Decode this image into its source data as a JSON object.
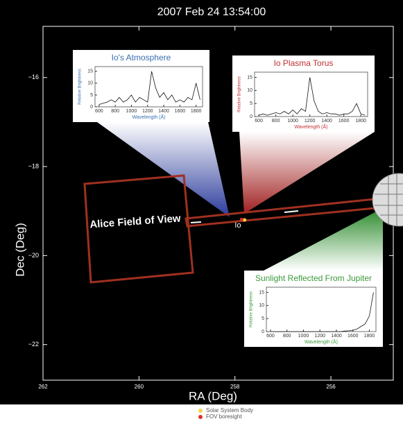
{
  "chart_data": [
    {
      "type": "scatter",
      "title": "2007 Feb 24 13:54:00",
      "x_label": "RA (Deg)",
      "y_label": "Dec (Deg)",
      "xlim": [
        262,
        254.7
      ],
      "ylim": [
        -22.8,
        -14.85
      ],
      "xticks": [
        262,
        260,
        258,
        256
      ],
      "yticks": [
        {
          "value": -16,
          "label": "−16"
        },
        {
          "value": -18,
          "label": "−18"
        },
        {
          "value": -20,
          "label": "−20"
        },
        {
          "value": -22,
          "label": "−22"
        }
      ],
      "series": [
        {
          "name": "Solar System Body",
          "color": "#f2d64b",
          "x": [
            257.8
          ],
          "values": [
            -19.2
          ]
        },
        {
          "name": "FOV boresight",
          "color": "#e0302a",
          "x": [
            257.86
          ],
          "values": [
            -19.19
          ]
        }
      ],
      "annotations": [
        "Alice Field of View",
        "Io"
      ]
    },
    {
      "type": "line",
      "title": "Io's Atmosphere",
      "color": "#3a6fb0",
      "x_label": "Wavelength (Å)",
      "y_label": "Relative Brightness",
      "xlim": [
        550,
        1880
      ],
      "ylim": [
        0,
        17
      ],
      "xticks": [
        600,
        800,
        1000,
        1200,
        1400,
        1600,
        1800
      ],
      "yticks": [
        0,
        5,
        10,
        15
      ],
      "x": [
        600,
        650,
        700,
        750,
        800,
        850,
        900,
        950,
        1000,
        1050,
        1100,
        1150,
        1200,
        1250,
        1300,
        1350,
        1400,
        1450,
        1500,
        1550,
        1600,
        1650,
        1700,
        1750,
        1800,
        1850
      ],
      "values": [
        1,
        1.5,
        2,
        3,
        2,
        4,
        2,
        3,
        5,
        2,
        4,
        3,
        2,
        15,
        8,
        4,
        6,
        3,
        5,
        2,
        3,
        2,
        4,
        3,
        10,
        3
      ]
    },
    {
      "type": "line",
      "title": "Io Plasma Torus",
      "color": "#c0302f",
      "x_label": "Wavelength (Å)",
      "y_label": "Relative Brightness",
      "xlim": [
        550,
        1880
      ],
      "ylim": [
        0,
        17
      ],
      "xticks": [
        600,
        800,
        1000,
        1200,
        1400,
        1600,
        1800
      ],
      "yticks": [
        0,
        5,
        10,
        15
      ],
      "x": [
        600,
        650,
        700,
        750,
        800,
        850,
        900,
        950,
        1000,
        1050,
        1100,
        1150,
        1200,
        1250,
        1300,
        1350,
        1400,
        1450,
        1500,
        1550,
        1600,
        1650,
        1700,
        1750,
        1800,
        1850
      ],
      "values": [
        0.5,
        1,
        0.5,
        1,
        1.5,
        1,
        2,
        1,
        2.5,
        1,
        3,
        2,
        15,
        6,
        2,
        1,
        1.5,
        1,
        1,
        0.5,
        1,
        1,
        2,
        5,
        1,
        0.5
      ]
    },
    {
      "type": "line",
      "title": "Sunlight Reflected From Jupiter",
      "color": "#3a9a3a",
      "x_label": "Wavelength (Å)",
      "y_label": "Relative Brightness",
      "xlim": [
        550,
        1880
      ],
      "ylim": [
        0,
        17
      ],
      "xticks": [
        600,
        800,
        1000,
        1200,
        1400,
        1600,
        1800
      ],
      "yticks": [
        0,
        5,
        10,
        15
      ],
      "x": [
        600,
        650,
        700,
        750,
        800,
        850,
        900,
        950,
        1000,
        1050,
        1100,
        1150,
        1200,
        1250,
        1300,
        1350,
        1400,
        1450,
        1500,
        1550,
        1600,
        1650,
        1700,
        1750,
        1800,
        1850
      ],
      "values": [
        0,
        0,
        0,
        0,
        0,
        0,
        0,
        0,
        0,
        0,
        0,
        0,
        0,
        0,
        0,
        0,
        0,
        0,
        0.2,
        0.3,
        0.5,
        1,
        2,
        3,
        6,
        15
      ]
    }
  ]
}
